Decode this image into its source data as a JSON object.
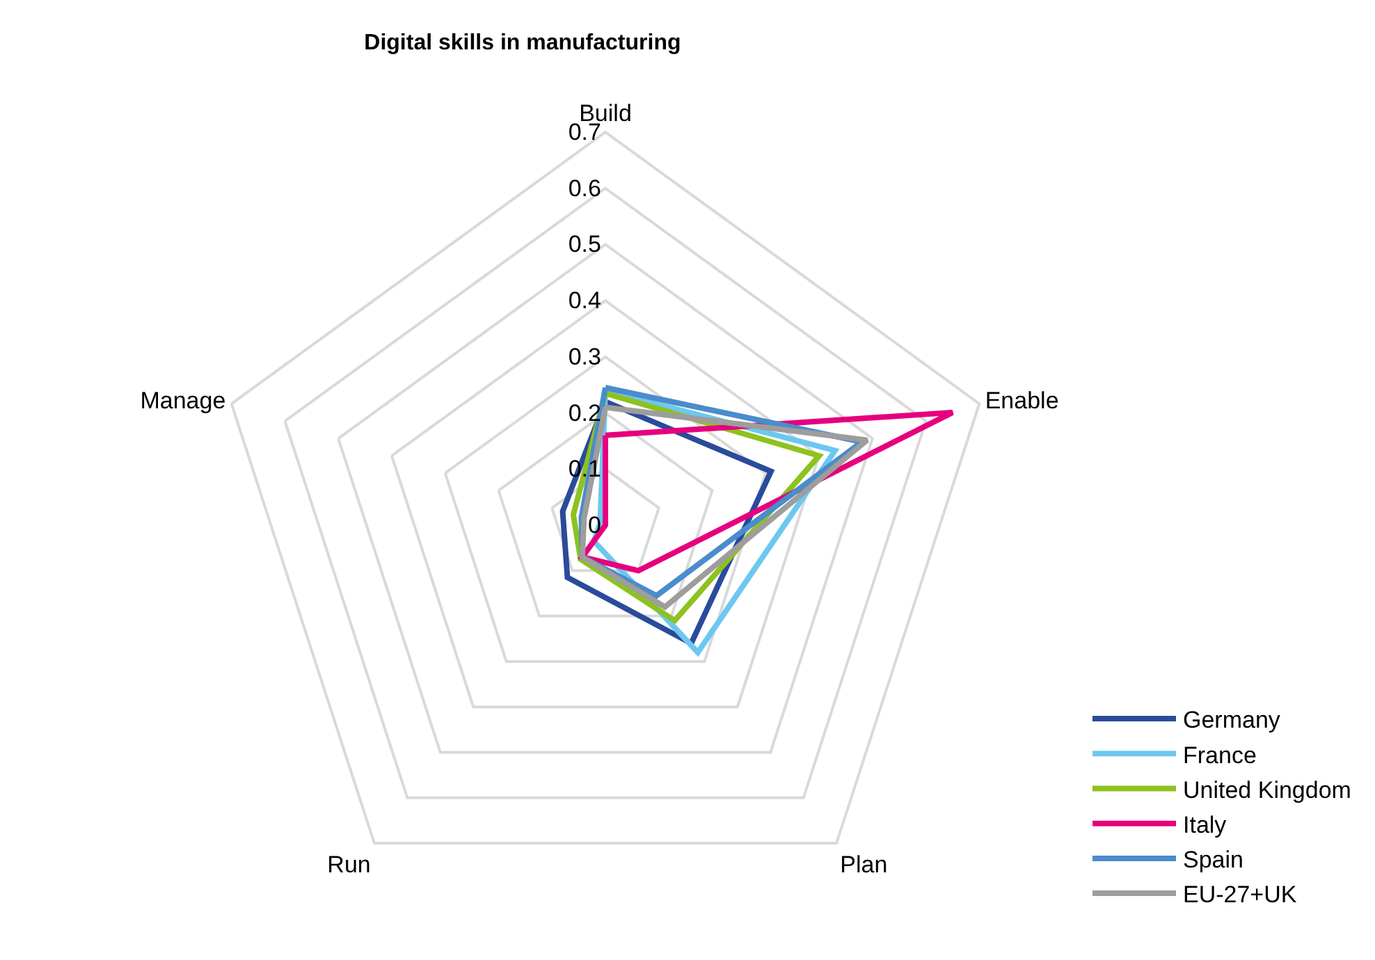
{
  "chart_data": {
    "type": "radar",
    "title": "Digital skills in manufacturing",
    "categories": [
      "Build",
      "Enable",
      "Plan",
      "Run",
      "Manage"
    ],
    "ylim": [
      0,
      0.7
    ],
    "yticks": [
      0,
      0.1,
      0.2,
      0.3,
      0.4,
      0.5,
      0.6,
      0.7
    ],
    "grid": true,
    "legend": "bottom right",
    "marker": "none",
    "line_style": "solid",
    "series": [
      {
        "name": "Germany",
        "color": "#2a4b9b",
        "values": [
          0.22,
          0.31,
          0.26,
          0.115,
          0.08
        ]
      },
      {
        "name": "France",
        "color": "#6cc8f0",
        "values": [
          0.24,
          0.43,
          0.28,
          0.035,
          0.01
        ]
      },
      {
        "name": "United Kingdom",
        "color": "#8dc21f",
        "values": [
          0.235,
          0.4,
          0.21,
          0.075,
          0.06
        ]
      },
      {
        "name": "Italy",
        "color": "#e6007e",
        "values": [
          0.16,
          0.65,
          0.1,
          0.07,
          0.0
        ]
      },
      {
        "name": "Spain",
        "color": "#4a8ccc",
        "values": [
          0.245,
          0.48,
          0.155,
          0.07,
          0.045
        ]
      },
      {
        "name": "EU-27+UK",
        "color": "#9d9d9c",
        "values": [
          0.21,
          0.49,
          0.18,
          0.07,
          0.04
        ]
      }
    ]
  }
}
